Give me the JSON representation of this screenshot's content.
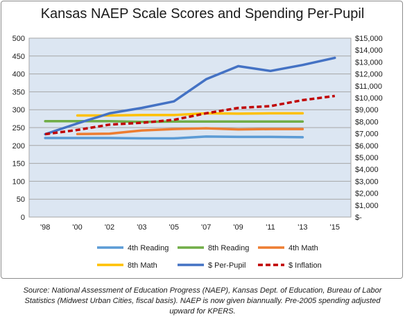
{
  "chart_data": {
    "type": "line",
    "title": "Kansas NAEP Scale Scores and Spending Per-Pupil",
    "categories": [
      "'98",
      "'00",
      "'02",
      "'03",
      "'05",
      "'07",
      "'09",
      "'11",
      "'13",
      "'15"
    ],
    "y_left": {
      "range": [
        0,
        500
      ],
      "ticks": [
        0,
        50,
        100,
        150,
        200,
        250,
        300,
        350,
        400,
        450,
        500
      ]
    },
    "y_right": {
      "range": [
        0,
        15000
      ],
      "ticks": [
        0,
        1000,
        2000,
        3000,
        4000,
        5000,
        6000,
        7000,
        8000,
        9000,
        10000,
        11000,
        12000,
        13000,
        14000,
        15000
      ],
      "tick_labels": [
        "$-",
        "$1,000",
        "$2,000",
        "$3,000",
        "$4,000",
        "$5,000",
        "$6,000",
        "$7,000",
        "$8,000",
        "$9,000",
        "$10,000",
        "$11,000",
        "$12,000",
        "$13,000",
        "$14,000",
        "$15,000"
      ]
    },
    "grid": true,
    "legend_position": "bottom",
    "series": [
      {
        "name": "4th Reading",
        "axis": "left",
        "color": "#5b9bd5",
        "dash": false,
        "values": [
          221,
          221,
          221,
          220,
          220,
          225,
          224,
          224,
          223,
          null
        ]
      },
      {
        "name": "8th Reading",
        "axis": "left",
        "color": "#70ad47",
        "dash": false,
        "values": [
          268,
          268,
          268,
          266,
          267,
          267,
          267,
          267,
          267,
          null
        ]
      },
      {
        "name": "4th Math",
        "axis": "left",
        "color": "#ed7d31",
        "dash": false,
        "values": [
          null,
          232,
          233,
          242,
          246,
          248,
          245,
          246,
          246,
          null
        ]
      },
      {
        "name": "8th Math",
        "axis": "left",
        "color": "#ffc000",
        "dash": false,
        "values": [
          null,
          284,
          284,
          285,
          285,
          290,
          289,
          290,
          290,
          null
        ]
      },
      {
        "name": "$ Per-Pupil",
        "axis": "right",
        "color": "#4472c4",
        "dash": false,
        "values": [
          6950,
          7850,
          8700,
          9150,
          9700,
          11550,
          12650,
          12250,
          12750,
          13350
        ]
      },
      {
        "name": "$ Inflation",
        "axis": "right",
        "color": "#c00000",
        "dash": true,
        "values": [
          6950,
          7300,
          7750,
          7900,
          8150,
          8700,
          9150,
          9300,
          9800,
          10150
        ]
      }
    ]
  },
  "source_note": "Source: National Assessment of Education Progress (NAEP), Kansas Dept. of Education, Bureau of Labor Statistics (Midwest Urban Cities, fiscal basis). NAEP is now given biannually.  Pre-2005 spending adjusted upward for KPERS."
}
